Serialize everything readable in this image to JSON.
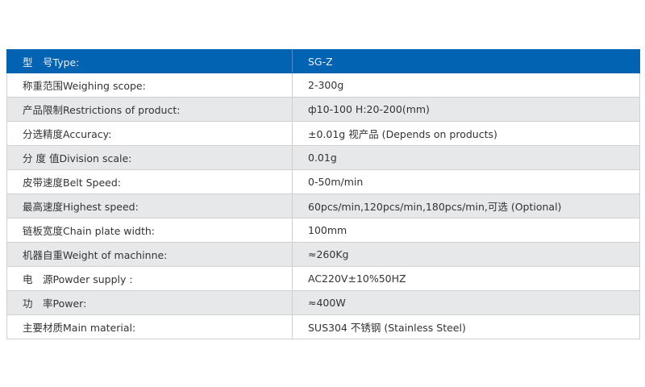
{
  "header": {
    "label": "型　号Type:",
    "value": "SG-Z"
  },
  "colors": {
    "header_bg": "#0263b3",
    "alt_row_bg": "#e7e8ea"
  },
  "rows": [
    {
      "label": "称重范围Weighing scope:",
      "value": "2-300g"
    },
    {
      "label": "产品限制Restrictions of product:",
      "value": "ф10-100  H:20-200(mm)"
    },
    {
      "label": "分选精度Accuracy:",
      "value": "±0.01g 视产品 (Depends on products)"
    },
    {
      "label": "分 度 值Division scale:",
      "value": "0.01g"
    },
    {
      "label": "皮带速度Belt Speed:",
      "value": "0-50m/min"
    },
    {
      "label": "最高速度Highest speed:",
      "value": "60pcs/min,120pcs/min,180pcs/min,可选 (Optional)"
    },
    {
      "label": "链板宽度Chain plate width:",
      "value": "100mm"
    },
    {
      "label": "机器自重Weight of machinne:",
      "value": "≈260Kg"
    },
    {
      "label": "电　源Powder supply :",
      "value": "AC220V±10%50HZ"
    },
    {
      "label": "功　率Power:",
      "value": "≈400W"
    },
    {
      "label": "主要材质Main material:",
      "value": "SUS304 不锈钢 (Stainless Steel)"
    }
  ]
}
